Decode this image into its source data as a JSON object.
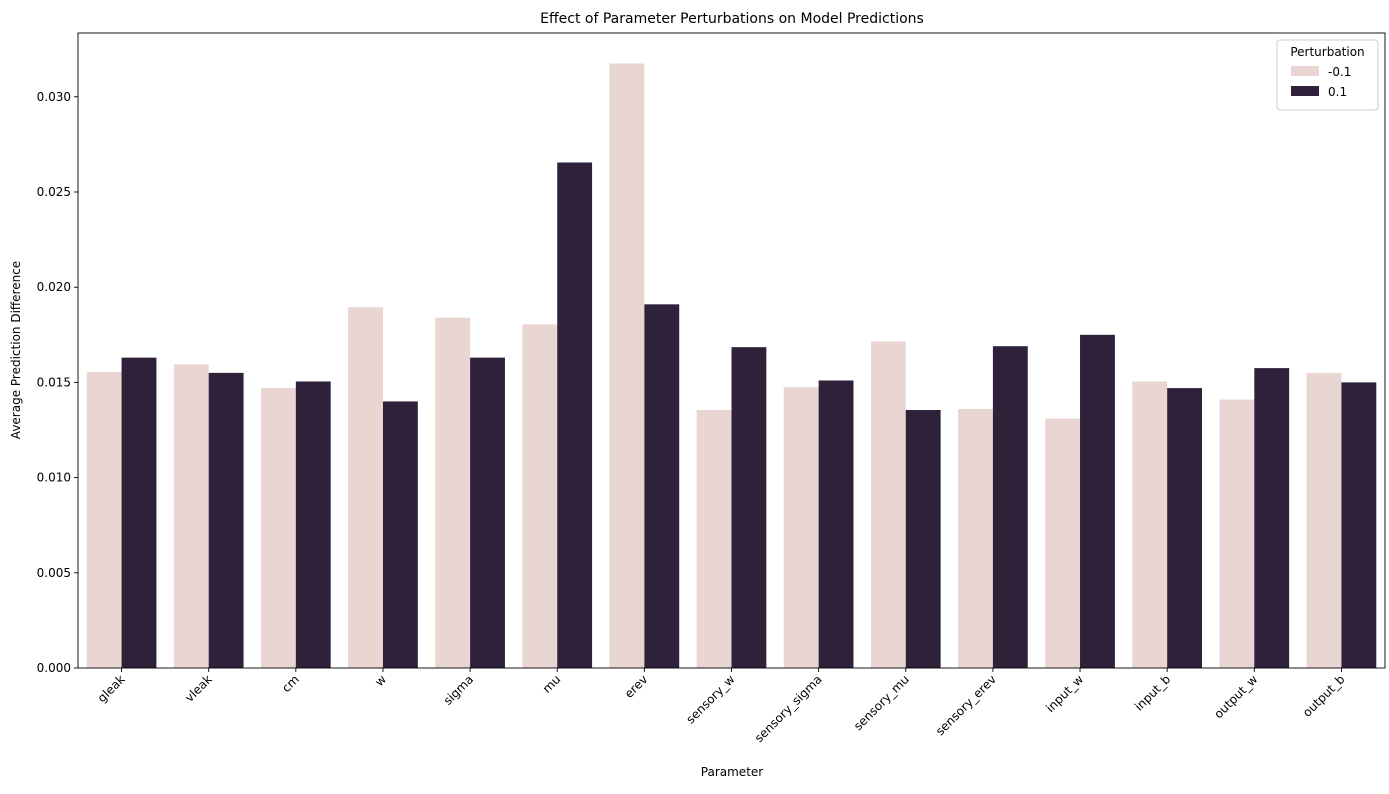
{
  "chart_data": {
    "type": "bar",
    "title": "Effect of Parameter Perturbations on Model Predictions",
    "xlabel": "Parameter",
    "ylabel": "Average Prediction Difference",
    "categories": [
      "gleak",
      "vleak",
      "cm",
      "w",
      "sigma",
      "mu",
      "erev",
      "sensory_w",
      "sensory_sigma",
      "sensory_mu",
      "sensory_erev",
      "input_w",
      "input_b",
      "output_w",
      "output_b"
    ],
    "series": [
      {
        "name": "-0.1",
        "color": "#e9d5d1",
        "values": [
          0.01555,
          0.01595,
          0.0147,
          0.01895,
          0.0184,
          0.01805,
          0.03175,
          0.01355,
          0.01475,
          0.01715,
          0.0136,
          0.0131,
          0.01505,
          0.0141,
          0.0155
        ]
      },
      {
        "name": "0.1",
        "color": "#2e2139",
        "values": [
          0.0163,
          0.0155,
          0.01505,
          0.014,
          0.0163,
          0.02655,
          0.0191,
          0.01685,
          0.0151,
          0.01355,
          0.0169,
          0.0175,
          0.0147,
          0.01575,
          0.015
        ]
      }
    ],
    "ylim": [
      0,
      0.03335
    ],
    "yticks": [
      "0.000",
      "0.005",
      "0.010",
      "0.015",
      "0.020",
      "0.025",
      "0.030"
    ],
    "legend": {
      "title": "Perturbation",
      "position": "top-right"
    },
    "grid": false
  }
}
